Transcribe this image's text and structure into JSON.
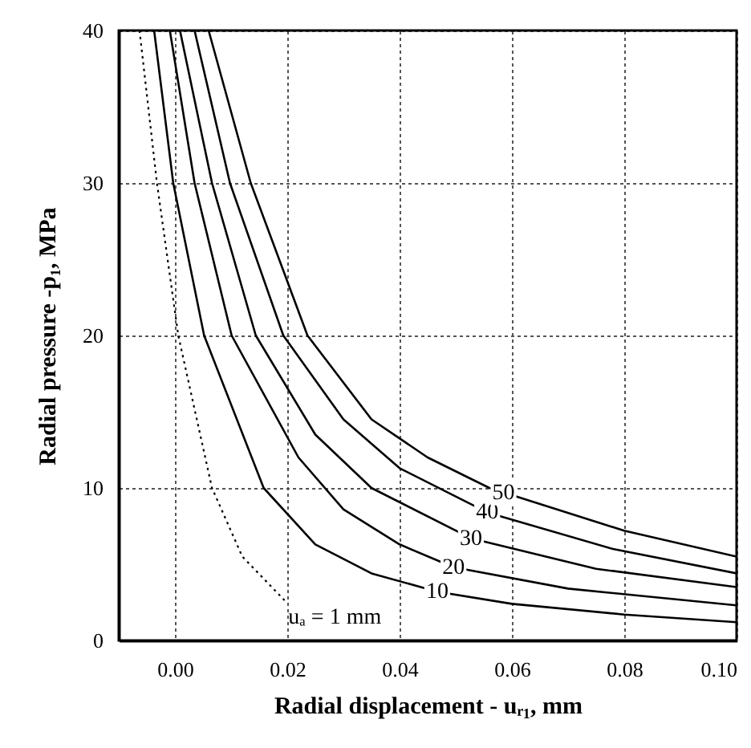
{
  "chart_data": {
    "type": "line",
    "xlabel": "Radial displacement - uᵣ₁, mm",
    "ylabel": "Radial pressure -p₁, MPa",
    "xlim": [
      -0.01,
      0.1
    ],
    "ylim": [
      0,
      40
    ],
    "xticks": [
      {
        "value": 0,
        "label": "0.00"
      },
      0.02,
      0.04,
      0.06,
      0.08,
      {
        "value": 0.1,
        "label": "0.10"
      }
    ],
    "yticks": [
      0,
      10,
      20,
      30,
      40
    ],
    "grid": true,
    "marker": "none",
    "series": [
      {
        "color": "#000000",
        "line_style": "dotted",
        "x": [
          -0.0063,
          -0.0032,
          0.0006,
          0.0066,
          0.012,
          0.0196
        ],
        "values": [
          40,
          30,
          20,
          10,
          5.5,
          2.6
        ]
      },
      {
        "color": "#000000",
        "line_style": "solid",
        "x": [
          -0.0037,
          -0.0003,
          0.0052,
          0.0158,
          0.025,
          0.035,
          0.0467,
          0.06,
          0.08,
          0.1
        ],
        "values": [
          40,
          30,
          20,
          10,
          6.3,
          4.4,
          3.2,
          2.4,
          1.7,
          1.2
        ]
      },
      {
        "color": "#000000",
        "line_style": "solid",
        "x": [
          -0.0009,
          0.0035,
          0.0101,
          0.022,
          0.03,
          0.04,
          0.0496,
          0.07,
          0.1
        ],
        "values": [
          40,
          30,
          20,
          12,
          8.6,
          6.3,
          4.8,
          3.4,
          2.3
        ]
      },
      {
        "color": "#000000",
        "line_style": "solid",
        "x": [
          0.0009,
          0.0066,
          0.0144,
          0.025,
          0.035,
          0.0527,
          0.075,
          0.1
        ],
        "values": [
          40,
          30,
          20,
          13.5,
          10,
          6.7,
          4.7,
          3.5
        ]
      },
      {
        "color": "#000000",
        "line_style": "solid",
        "x": [
          0.0035,
          0.0098,
          0.0193,
          0.03,
          0.04,
          0.0556,
          0.078,
          0.1
        ],
        "values": [
          40,
          30,
          20,
          14.5,
          11.3,
          8.4,
          6,
          4.4
        ]
      },
      {
        "color": "#000000",
        "line_style": "solid",
        "x": [
          0.006,
          0.0135,
          0.0236,
          0.035,
          0.045,
          0.056,
          0.08,
          0.1
        ],
        "values": [
          40,
          30,
          20,
          14.5,
          12,
          10,
          7.2,
          5.5
        ]
      }
    ],
    "annotations": [
      {
        "text": "uₐ = 1 mm",
        "x": 0.0196,
        "y": 2.6
      },
      {
        "text": "10",
        "x": 0.0467,
        "y": 3.2
      },
      {
        "text": "20",
        "x": 0.0496,
        "y": 4.8
      },
      {
        "text": "30",
        "x": 0.0527,
        "y": 6.7
      },
      {
        "text": "40",
        "x": 0.0556,
        "y": 8.4
      },
      {
        "text": "50",
        "x": 0.0585,
        "y": 9.7
      }
    ]
  }
}
